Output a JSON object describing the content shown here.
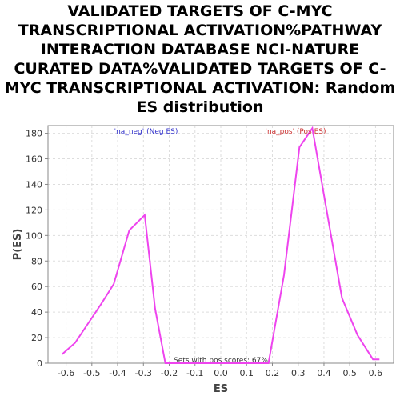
{
  "chart_data": {
    "type": "line",
    "title": "VALIDATED TARGETS OF C-MYC TRANSCRIPTIONAL ACTIVATION%PATHWAY INTERACTION DATABASE NCI-NATURE CURATED DATA%VALIDATED TARGETS OF C-MYC TRANSCRIPTIONAL ACTIVATION: Random ES distribution",
    "xlabel": "ES",
    "ylabel": "P(ES)",
    "xlim": [
      -0.67,
      0.67
    ],
    "ylim": [
      0,
      186
    ],
    "x_ticks": [
      "-0.6",
      "-0.5",
      "-0.4",
      "-0.3",
      "-0.2",
      "-0.1",
      "0.0",
      "0.1",
      "0.2",
      "0.3",
      "0.4",
      "0.5",
      "0.6"
    ],
    "y_ticks": [
      "0",
      "20",
      "40",
      "60",
      "80",
      "100",
      "120",
      "140",
      "160",
      "180"
    ],
    "grid": true,
    "line_color": "#ee44ee",
    "series": [
      {
        "x": [
          -0.615,
          -0.565,
          -0.515,
          -0.465,
          -0.415,
          -0.355,
          -0.295,
          -0.255,
          -0.215,
          -0.175,
          -0.135,
          -0.095,
          -0.055,
          -0.015,
          0.025,
          0.065,
          0.105,
          0.145,
          0.185,
          0.245,
          0.305,
          0.355,
          0.41,
          0.47,
          0.53,
          0.59,
          0.615
        ],
        "y": [
          7,
          16,
          31,
          46,
          62,
          104,
          116,
          43,
          0,
          0,
          0,
          0,
          0,
          0,
          0,
          0,
          0,
          0,
          0,
          69,
          169,
          184,
          120,
          51,
          22,
          3,
          3
        ]
      }
    ],
    "annotations": [
      {
        "text": "'na_neg' (Neg ES)",
        "color": "#3333cc",
        "x": -0.29,
        "y": 186
      },
      {
        "text": "'na_pos' (Pos ES)",
        "color": "#cc3333",
        "x": 0.29,
        "y": 186
      },
      {
        "text": "Sets with pos scores: 67%",
        "color": "#333333",
        "x": 0.0,
        "y": 0
      }
    ]
  }
}
